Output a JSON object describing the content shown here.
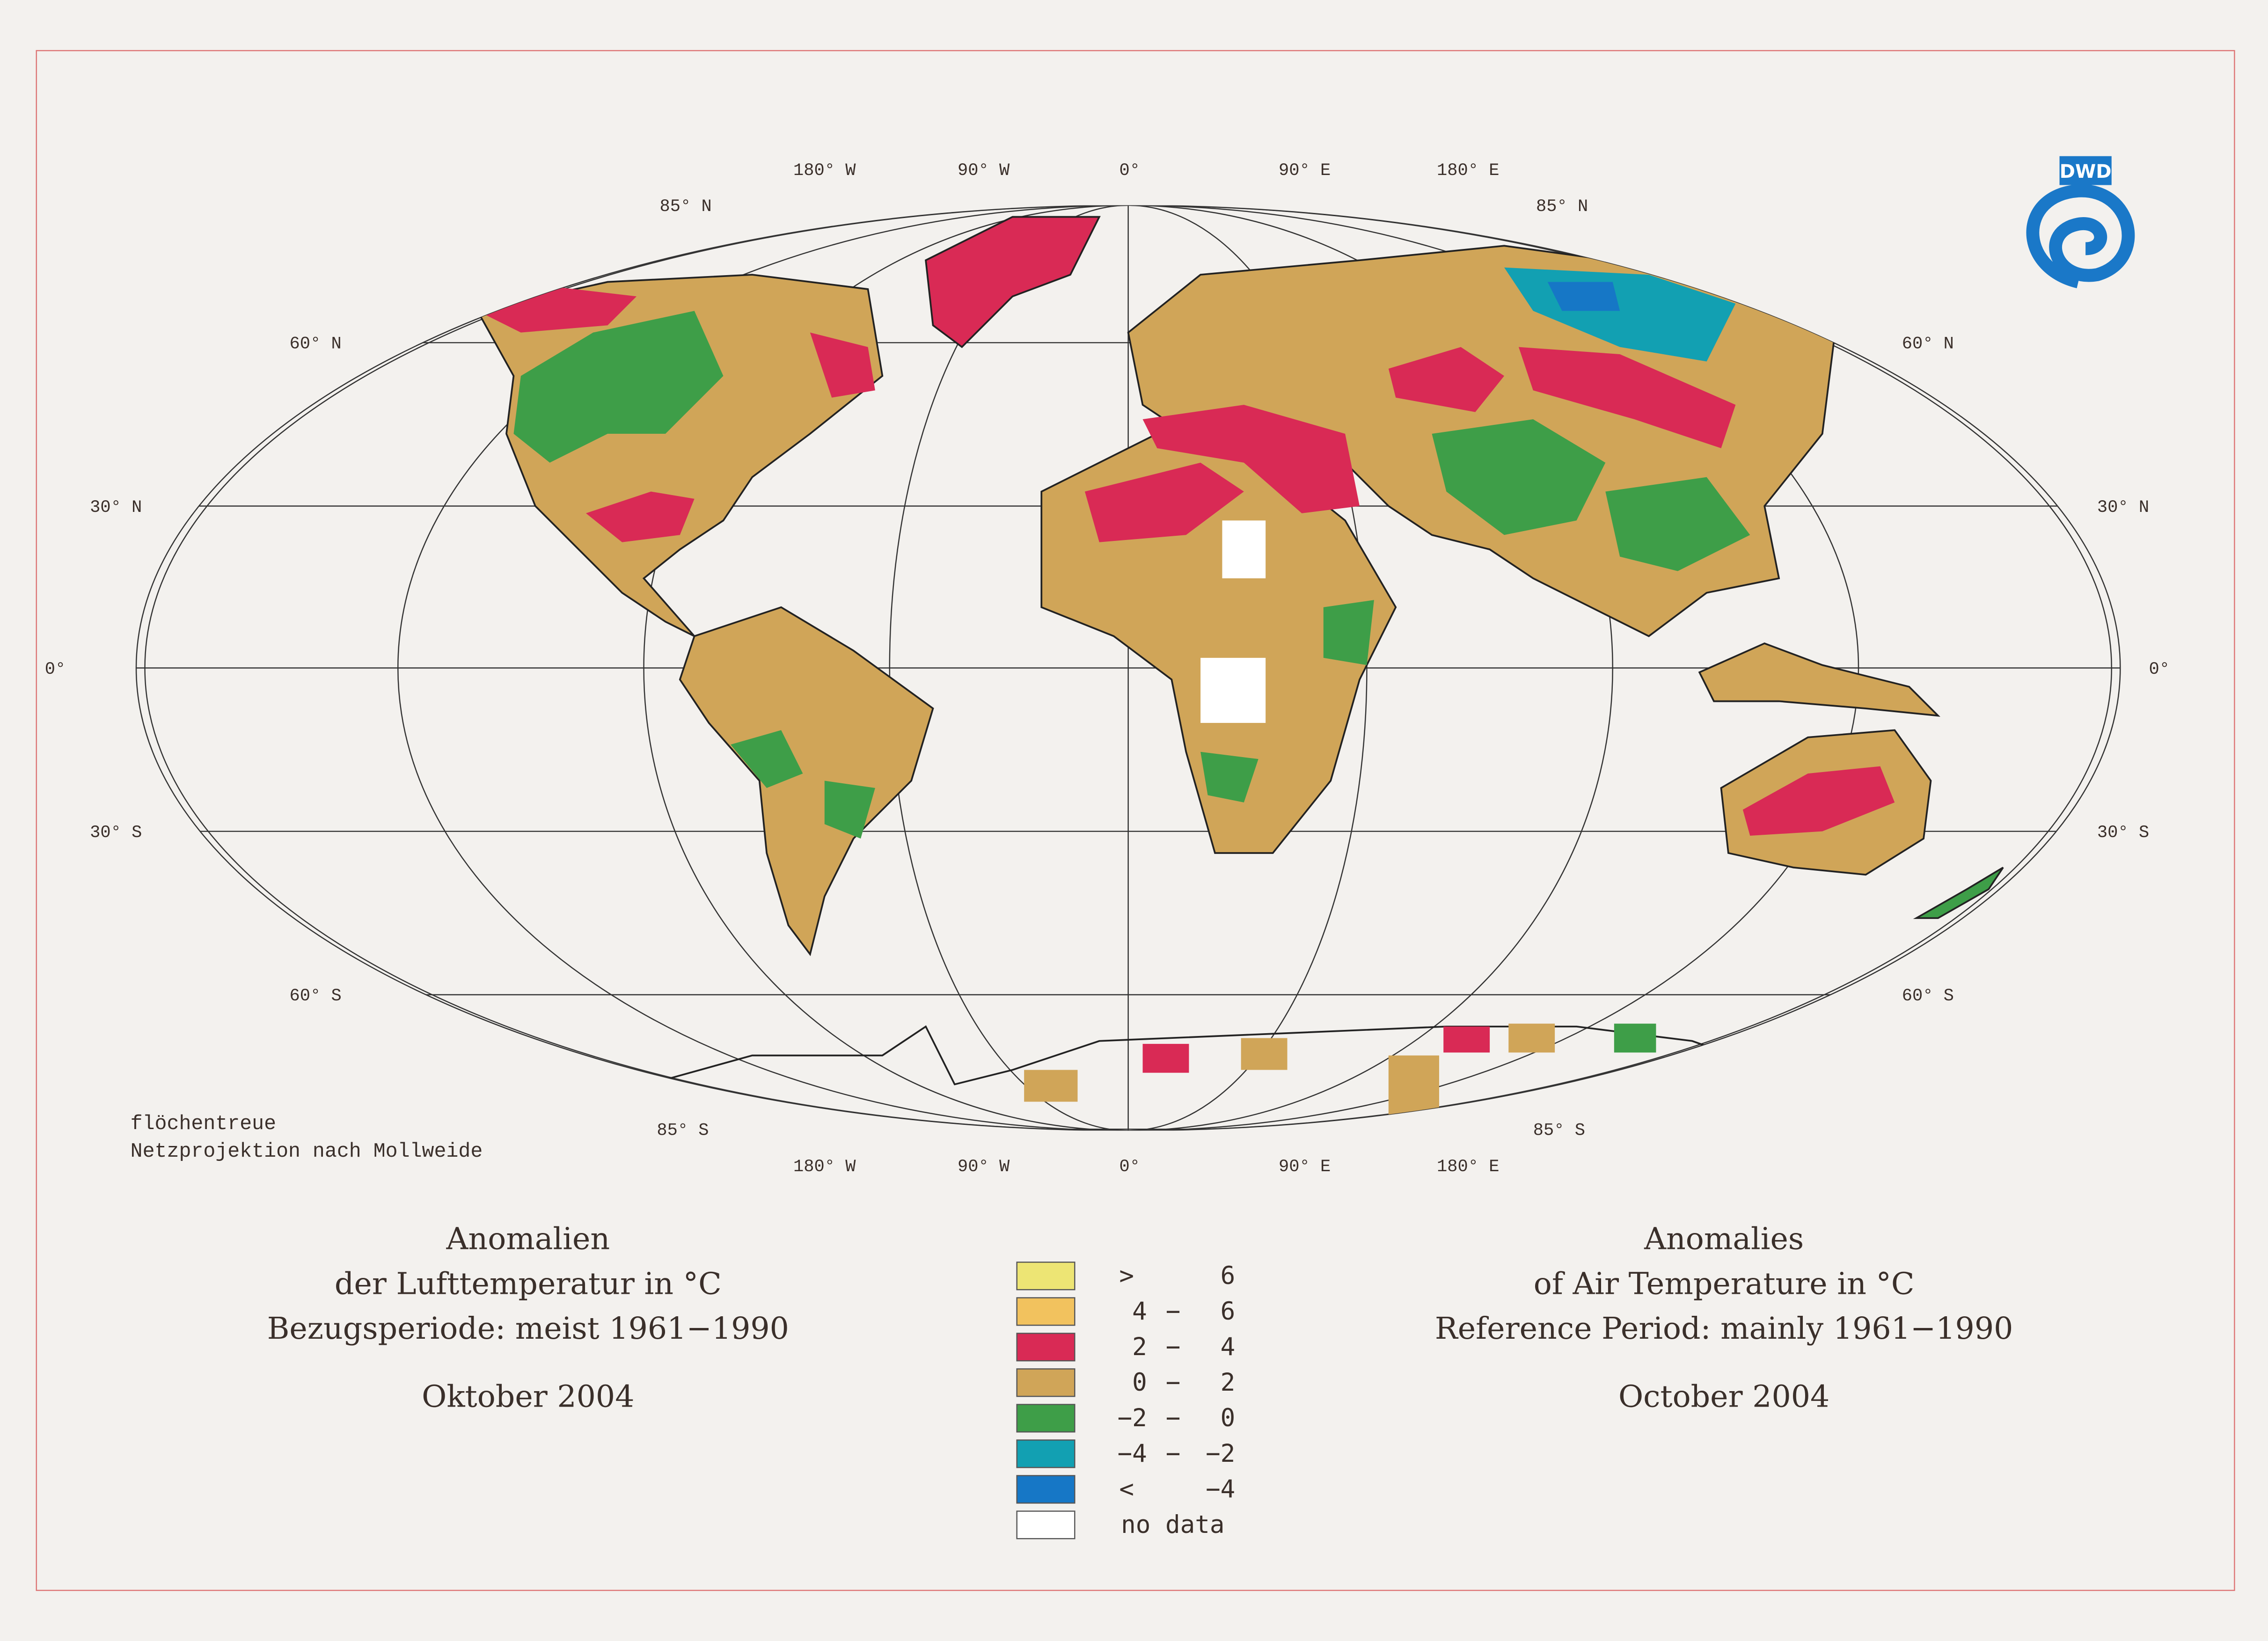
{
  "logo": "DWD",
  "meridian_labels": [
    "180° W",
    "90° W",
    "0°",
    "90° E",
    "180° E"
  ],
  "parallel_labels": [
    "85° N",
    "60° N",
    "30° N",
    "0°",
    "30° S",
    "60° S",
    "85° S"
  ],
  "projection_note": [
    "flöchentreue",
    "Netzprojektion nach Mollweide"
  ],
  "title_de": [
    "Anomalien",
    "der Lufttemperatur in °C",
    "Bezugsperiode: meist 1961−1990",
    "Oktober 2004"
  ],
  "title_en": [
    "Anomalies",
    "of Air Temperature in °C",
    "Reference Period: mainly 1961−1990",
    "October 2004"
  ],
  "legend": [
    {
      "color": "#ede574",
      "low": ">",
      "high": "6"
    },
    {
      "color": "#f2c25e",
      "low": "4",
      "sep": "−",
      "high": "6"
    },
    {
      "color": "#d92a55",
      "low": "2",
      "sep": "−",
      "high": "4"
    },
    {
      "color": "#d0a558",
      "low": "0",
      "sep": "−",
      "high": "2"
    },
    {
      "color": "#3e9e48",
      "low": "−2",
      "sep": "−",
      "high": "0"
    },
    {
      "color": "#12a0b2",
      "low": "−4",
      "sep": "−",
      "high": "−2"
    },
    {
      "color": "#1677c6",
      "low": "<",
      "high": "−4"
    },
    {
      "color": "#ffffff",
      "label": "no data"
    }
  ]
}
